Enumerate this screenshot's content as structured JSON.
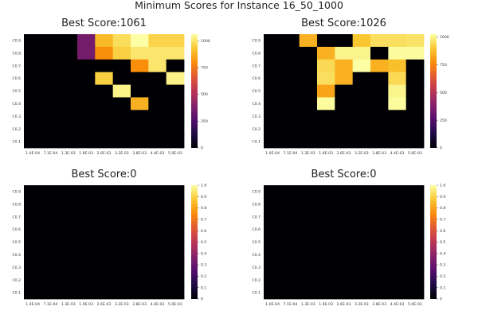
{
  "suptitle": "Minimum Scores for Instance 16_50_1000",
  "chart_data": [
    {
      "type": "heatmap",
      "title": "Best Score:1061",
      "x_categories": [
        "1.0E-04",
        "7.1E-04",
        "1.3E-03",
        "1.9E-03",
        "2.6E-03",
        "3.2E-03",
        "3.8E-03",
        "4.4E-03",
        "5.0E-03"
      ],
      "y_categories": [
        "C0.9",
        "C0.8",
        "C0.7",
        "C0.6",
        "C0.5",
        "C0.4",
        "C0.3",
        "C0.2",
        "C0.1"
      ],
      "values": [
        [
          0,
          0,
          0,
          350,
          900,
          980,
          1061,
          960,
          960
        ],
        [
          0,
          0,
          0,
          350,
          800,
          950,
          1000,
          1000,
          1000
        ],
        [
          0,
          0,
          0,
          0,
          0,
          0,
          800,
          1000,
          0
        ],
        [
          0,
          0,
          0,
          0,
          950,
          0,
          0,
          0,
          1030
        ],
        [
          0,
          0,
          0,
          0,
          0,
          1030,
          0,
          0,
          0
        ],
        [
          0,
          0,
          0,
          0,
          0,
          0,
          880,
          0,
          0
        ],
        [
          0,
          0,
          0,
          0,
          0,
          0,
          0,
          0,
          0
        ],
        [
          0,
          0,
          0,
          0,
          0,
          0,
          0,
          0,
          0
        ],
        [
          0,
          0,
          0,
          0,
          0,
          0,
          0,
          0,
          0
        ]
      ],
      "colorbar": {
        "min": 0,
        "max": 1061,
        "ticks": [
          "0",
          "250",
          "500",
          "750",
          "1000"
        ]
      }
    },
    {
      "type": "heatmap",
      "title": "Best Score:1026",
      "x_categories": [
        "1.0E-04",
        "7.1E-04",
        "1.3E-03",
        "1.9E-03",
        "2.6E-03",
        "3.2E-03",
        "3.8E-03",
        "4.4E-03",
        "5.0E-03"
      ],
      "y_categories": [
        "C0.9",
        "C0.8",
        "C0.7",
        "C0.6",
        "C0.5",
        "C0.4",
        "C0.3",
        "C0.2",
        "C0.1"
      ],
      "values": [
        [
          0,
          0,
          850,
          0,
          0,
          900,
          950,
          950,
          960
        ],
        [
          0,
          0,
          0,
          850,
          1000,
          1000,
          0,
          1020,
          1020
        ],
        [
          0,
          0,
          0,
          940,
          850,
          1026,
          850,
          880,
          0
        ],
        [
          0,
          0,
          0,
          950,
          850,
          0,
          0,
          940,
          0
        ],
        [
          0,
          0,
          0,
          820,
          0,
          0,
          0,
          1000,
          0
        ],
        [
          0,
          0,
          0,
          1020,
          0,
          0,
          0,
          1020,
          0
        ],
        [
          0,
          0,
          0,
          0,
          0,
          0,
          0,
          0,
          0
        ],
        [
          0,
          0,
          0,
          0,
          0,
          0,
          0,
          0,
          0
        ],
        [
          0,
          0,
          0,
          0,
          0,
          0,
          0,
          0,
          0
        ]
      ],
      "colorbar": {
        "min": 0,
        "max": 1026,
        "ticks": [
          "0",
          "250",
          "500",
          "750",
          "1000"
        ]
      }
    },
    {
      "type": "heatmap",
      "title": "Best Score:0",
      "x_categories": [
        "1.0E-04",
        "7.1E-04",
        "1.3E-03",
        "1.9E-03",
        "2.6E-03",
        "3.2E-03",
        "3.8E-03",
        "4.4E-03",
        "5.0E-03"
      ],
      "y_categories": [
        "C0.9",
        "C0.8",
        "C0.7",
        "C0.6",
        "C0.5",
        "C0.4",
        "C0.3",
        "C0.2",
        "C0.1"
      ],
      "values": [
        [
          0,
          0,
          0,
          0,
          0,
          0,
          0,
          0,
          0
        ],
        [
          0,
          0,
          0,
          0,
          0,
          0,
          0,
          0,
          0
        ],
        [
          0,
          0,
          0,
          0,
          0,
          0,
          0,
          0,
          0
        ],
        [
          0,
          0,
          0,
          0,
          0,
          0,
          0,
          0,
          0
        ],
        [
          0,
          0,
          0,
          0,
          0,
          0,
          0,
          0,
          0
        ],
        [
          0,
          0,
          0,
          0,
          0,
          0,
          0,
          0,
          0
        ],
        [
          0,
          0,
          0,
          0,
          0,
          0,
          0,
          0,
          0
        ],
        [
          0,
          0,
          0,
          0,
          0,
          0,
          0,
          0,
          0
        ],
        [
          0,
          0,
          0,
          0,
          0,
          0,
          0,
          0,
          0
        ]
      ],
      "colorbar": {
        "min": 0,
        "max": 1,
        "ticks": [
          "0",
          "0.1",
          "0.2",
          "0.3",
          "0.4",
          "0.5",
          "0.6",
          "0.7",
          "0.8",
          "0.9",
          "1.0"
        ]
      }
    },
    {
      "type": "heatmap",
      "title": "Best Score:0",
      "x_categories": [
        "1.0E-04",
        "7.1E-04",
        "1.3E-03",
        "1.9E-03",
        "2.6E-03",
        "3.2E-03",
        "3.8E-03",
        "4.4E-03",
        "5.0E-03"
      ],
      "y_categories": [
        "C0.9",
        "C0.8",
        "C0.7",
        "C0.6",
        "C0.5",
        "C0.4",
        "C0.3",
        "C0.2",
        "C0.1"
      ],
      "values": [
        [
          0,
          0,
          0,
          0,
          0,
          0,
          0,
          0,
          0
        ],
        [
          0,
          0,
          0,
          0,
          0,
          0,
          0,
          0,
          0
        ],
        [
          0,
          0,
          0,
          0,
          0,
          0,
          0,
          0,
          0
        ],
        [
          0,
          0,
          0,
          0,
          0,
          0,
          0,
          0,
          0
        ],
        [
          0,
          0,
          0,
          0,
          0,
          0,
          0,
          0,
          0
        ],
        [
          0,
          0,
          0,
          0,
          0,
          0,
          0,
          0,
          0
        ],
        [
          0,
          0,
          0,
          0,
          0,
          0,
          0,
          0,
          0
        ],
        [
          0,
          0,
          0,
          0,
          0,
          0,
          0,
          0,
          0
        ],
        [
          0,
          0,
          0,
          0,
          0,
          0,
          0,
          0,
          0
        ]
      ],
      "colorbar": {
        "min": 0,
        "max": 1,
        "ticks": [
          "0",
          "0.1",
          "0.2",
          "0.3",
          "0.4",
          "0.5",
          "0.6",
          "0.7",
          "0.8",
          "0.9",
          "1.0"
        ]
      }
    }
  ],
  "colormap": "inferno"
}
